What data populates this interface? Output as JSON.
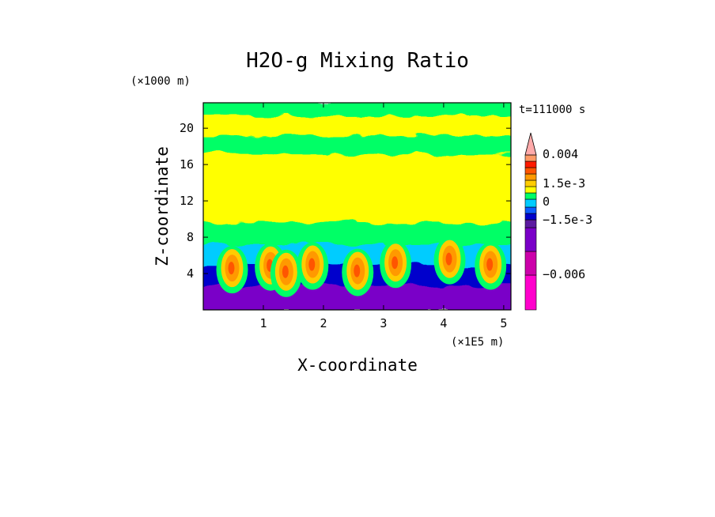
{
  "chart_data": {
    "type": "heatmap",
    "title": "H2O-g Mixing Ratio",
    "xlabel": "X-coordinate",
    "ylabel": "Z-coordinate",
    "x_unit": "(×1E5 m)",
    "y_unit": "(×1000 m)",
    "time_label": "t=111000 s",
    "xlim": [
      0,
      5.12
    ],
    "ylim": [
      0,
      22.8
    ],
    "x_ticks": [
      "1",
      "2",
      "3",
      "4",
      "5"
    ],
    "y_ticks": [
      "4",
      "8",
      "12",
      "16",
      "20"
    ],
    "colorbar": {
      "tick_labels": [
        "0.004",
        "1.5e-3",
        "0",
        "−1.5e-3",
        "−0.006"
      ],
      "colors": [
        "#ff00cc",
        "#cc00aa",
        "#7a00c8",
        "#5c1aa0",
        "#0000cc",
        "#0a5cff",
        "#00ccff",
        "#00ff66",
        "#ffff00",
        "#ffcc00",
        "#ff9900",
        "#ff5500",
        "#ff1a00",
        "#ff9966",
        "#ffaaaa"
      ]
    },
    "fields": {
      "upper_bands": [
        {
          "z_range": [
            21.2,
            22.8
          ],
          "color": "#00ff66"
        },
        {
          "z_range": [
            19.0,
            21.2
          ],
          "color": "#ffff00"
        },
        {
          "z_range": [
            17.0,
            19.0
          ],
          "color": "#00ff66"
        },
        {
          "z_range": [
            9.5,
            17.0
          ],
          "color": "#ffff00"
        },
        {
          "z_range": [
            7.0,
            9.5
          ],
          "color": "#00ff66"
        },
        {
          "z_range": [
            4.8,
            7.0
          ],
          "color": "#00ccff"
        },
        {
          "z_range": [
            2.5,
            4.8
          ],
          "color": "#0000cc"
        },
        {
          "z_range": [
            0,
            2.5
          ],
          "color": "#7a00c8"
        }
      ],
      "plumes": [
        {
          "x": 0.48,
          "z": 4.6
        },
        {
          "x": 1.12,
          "z": 4.9
        },
        {
          "x": 1.38,
          "z": 4.2
        },
        {
          "x": 1.82,
          "z": 5.0
        },
        {
          "x": 2.57,
          "z": 4.3
        },
        {
          "x": 3.2,
          "z": 5.2
        },
        {
          "x": 4.1,
          "z": 5.6
        },
        {
          "x": 4.78,
          "z": 5.0
        }
      ]
    }
  }
}
